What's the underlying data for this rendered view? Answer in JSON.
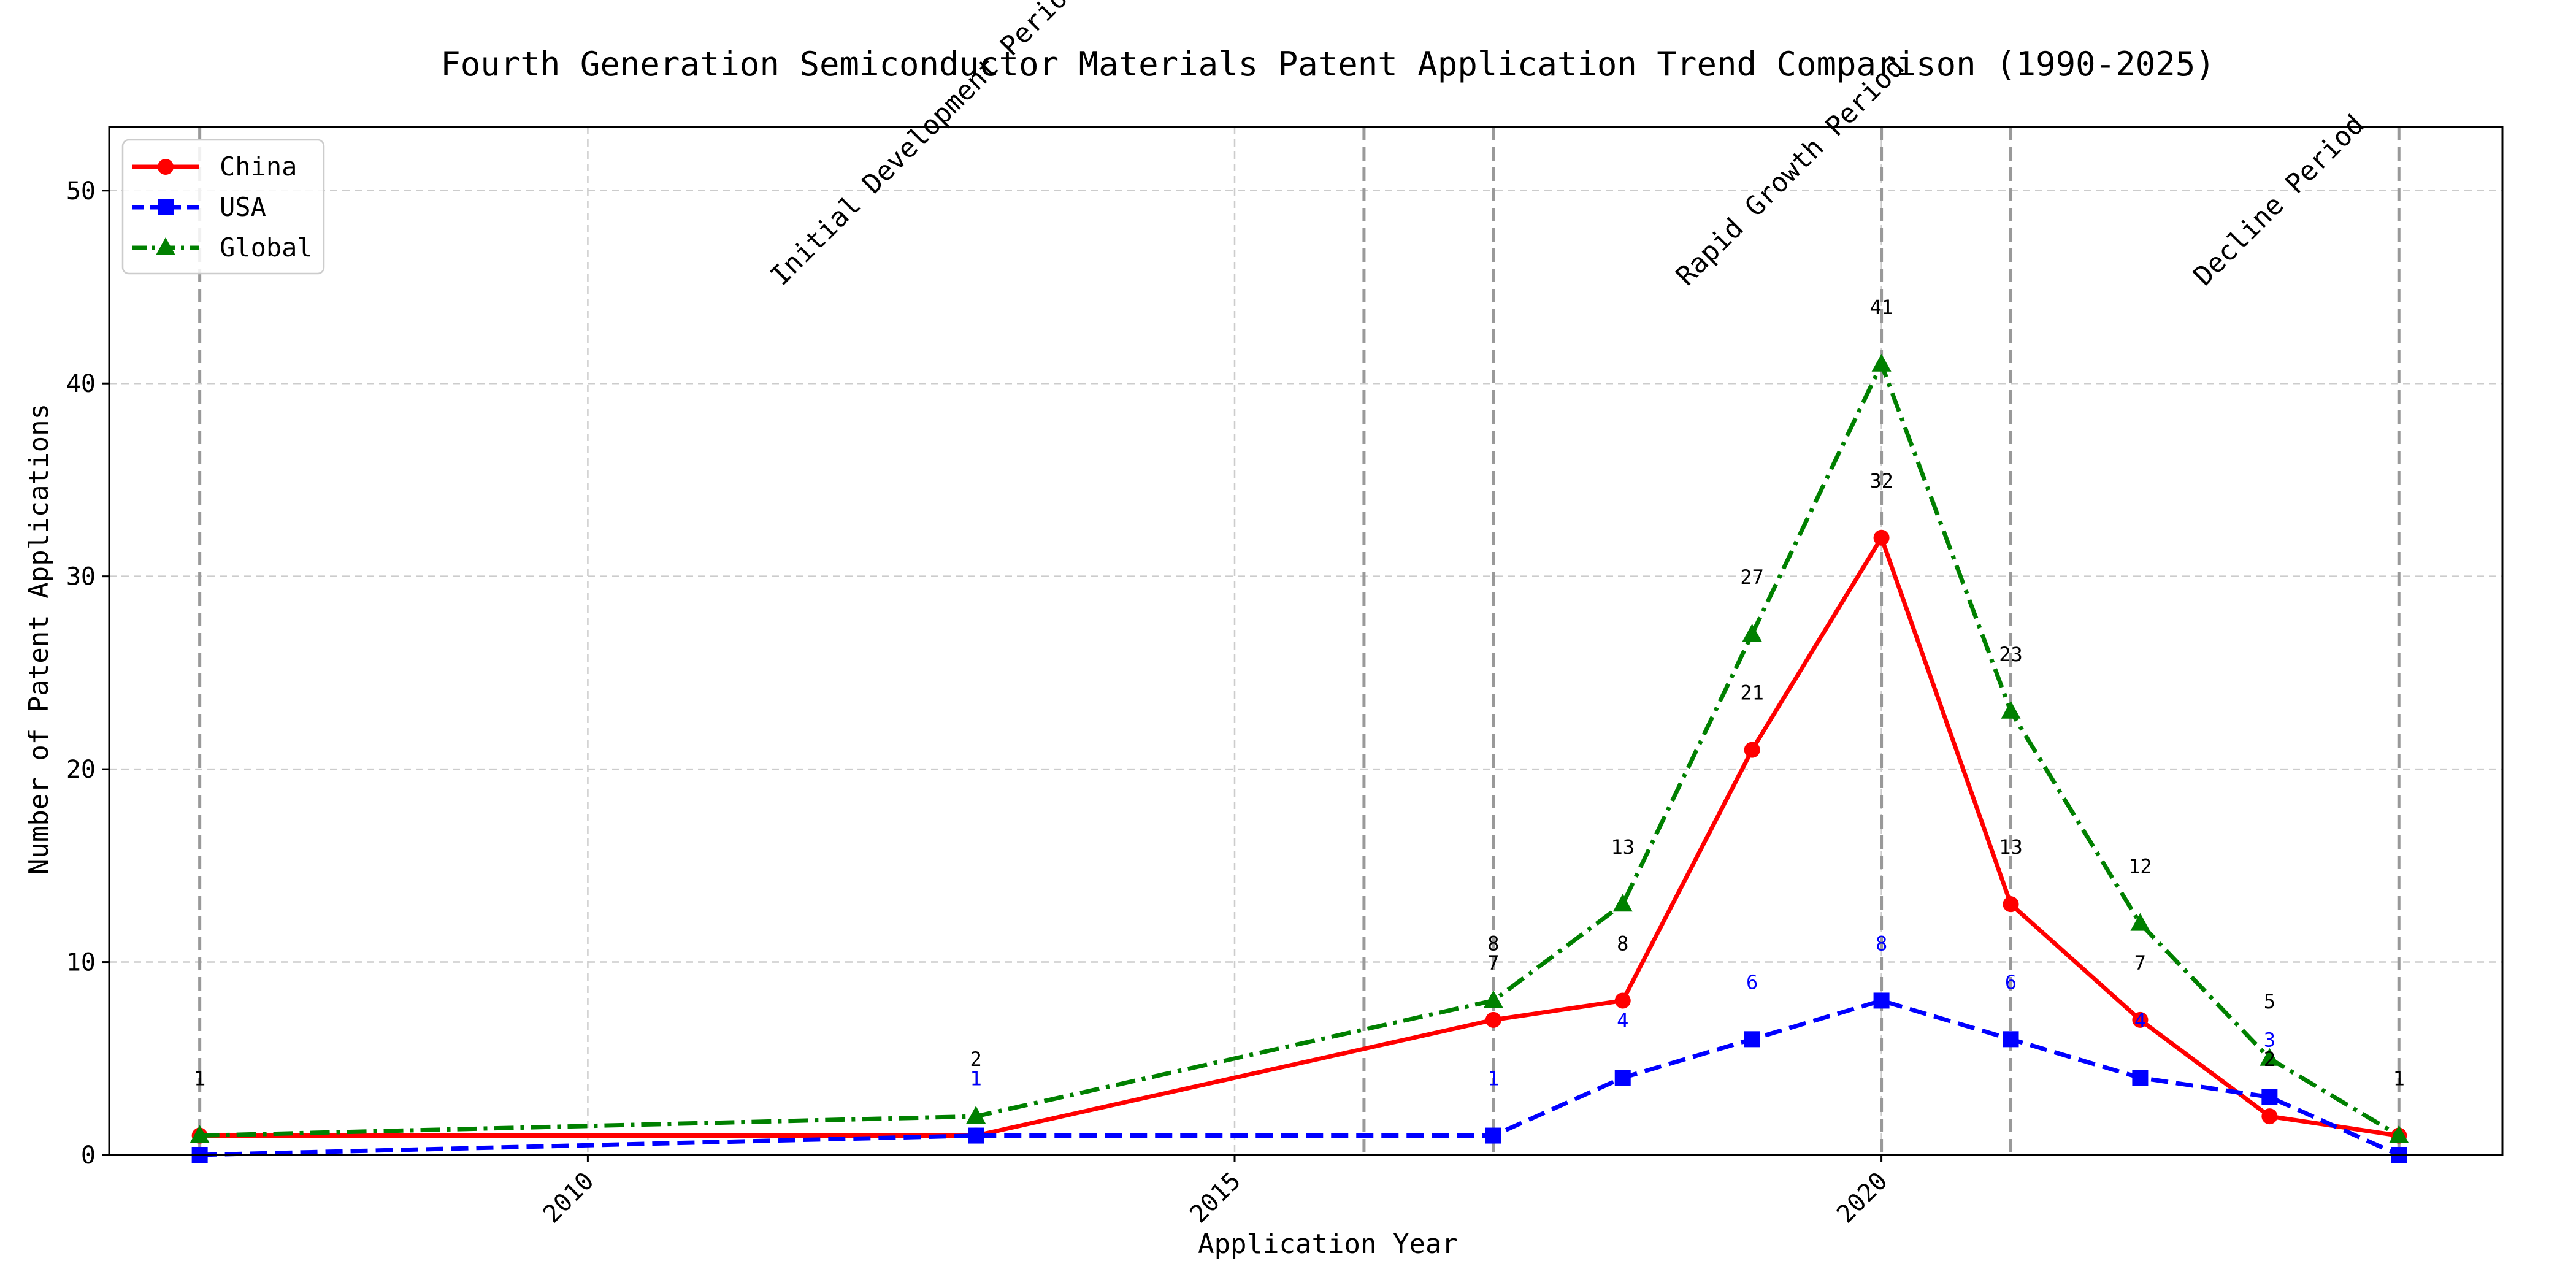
{
  "chart_data": {
    "type": "line",
    "title": "Fourth Generation Semiconductor Materials Patent Application Trend Comparison (1990-2025)",
    "xlabel": "Application Year",
    "ylabel": "Number of Patent Applications",
    "xlim": [
      2006.3,
      2024.8
    ],
    "ylim": [
      0,
      53.3
    ],
    "x_ticks": [
      2010,
      2015,
      2020
    ],
    "y_ticks": [
      0,
      10,
      20,
      30,
      40,
      50
    ],
    "grid": true,
    "legend_position": "top-left",
    "x": [
      2007,
      2013,
      2017,
      2018,
      2019,
      2020,
      2021,
      2022,
      2023,
      2024
    ],
    "series": [
      {
        "name": "China",
        "color": "#ff0000",
        "line_style": "solid",
        "marker": "circle",
        "values": [
          1,
          1,
          7,
          8,
          21,
          32,
          13,
          7,
          2,
          1
        ],
        "labels": [
          "",
          "1",
          "7",
          "8",
          "21",
          "32",
          "13",
          "7",
          "2",
          ""
        ]
      },
      {
        "name": "USA",
        "color": "#0000ff",
        "line_style": "dashed",
        "marker": "square",
        "values": [
          0,
          1,
          1,
          4,
          6,
          8,
          6,
          4,
          3,
          0
        ],
        "labels": [
          "",
          "1",
          "1",
          "4",
          "6",
          "8",
          "6",
          "4",
          "3",
          ""
        ]
      },
      {
        "name": "Global",
        "color": "#008000",
        "line_style": "dashdot",
        "marker": "triangle",
        "values": [
          1,
          2,
          8,
          13,
          27,
          41,
          23,
          12,
          5,
          1
        ],
        "labels": [
          "1",
          "2",
          "8",
          "13",
          "27",
          "41",
          "23",
          "12",
          "5",
          "1"
        ]
      }
    ],
    "period_lines": [
      2007,
      2016,
      2017,
      2020,
      2021,
      2024
    ],
    "periods": [
      {
        "label": "Initial Development Period",
        "x": 2011.5
      },
      {
        "label": "Rapid Growth Period",
        "x": 2018.5
      },
      {
        "label": "Decline Period",
        "x": 2022.5
      }
    ]
  }
}
